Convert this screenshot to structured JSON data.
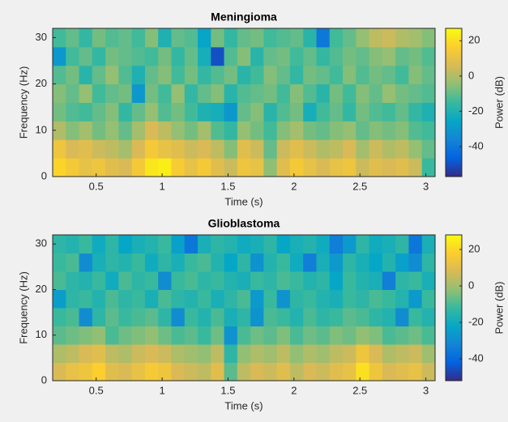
{
  "chart_data": [
    {
      "type": "heatmap",
      "title": "Meningioma",
      "xlabel": "Time (s)",
      "ylabel": "Frequency (Hz)",
      "colorbar_label": "Power (dB)",
      "colormap": "parula",
      "x": [
        0.22,
        0.32,
        0.42,
        0.52,
        0.62,
        0.72,
        0.82,
        0.92,
        1.02,
        1.12,
        1.22,
        1.32,
        1.42,
        1.52,
        1.62,
        1.72,
        1.82,
        1.92,
        2.02,
        2.12,
        2.22,
        2.32,
        2.42,
        2.52,
        2.62,
        2.72,
        2.82,
        2.92,
        3.02
      ],
      "y": [
        2,
        6,
        10,
        14,
        18,
        22,
        26,
        30
      ],
      "z": [
        [
          18,
          14,
          10,
          12,
          8,
          6,
          14,
          22,
          24,
          15,
          10,
          14,
          8,
          4,
          12,
          10,
          -5,
          8,
          14,
          10,
          6,
          10,
          12,
          4,
          8,
          6,
          8,
          4,
          -15
        ],
        [
          12,
          6,
          8,
          4,
          2,
          -2,
          6,
          14,
          10,
          8,
          4,
          6,
          2,
          -6,
          8,
          4,
          -10,
          4,
          8,
          4,
          0,
          2,
          6,
          -2,
          4,
          0,
          2,
          -4,
          -10
        ],
        [
          0,
          -6,
          -2,
          -8,
          -4,
          -10,
          -2,
          6,
          2,
          -4,
          -8,
          -2,
          -12,
          -16,
          -4,
          -8,
          -14,
          -6,
          -2,
          -8,
          -10,
          -6,
          -4,
          -10,
          -6,
          -8,
          -6,
          -12,
          -14
        ],
        [
          -8,
          -12,
          -14,
          -10,
          -6,
          -16,
          -10,
          -4,
          -12,
          -8,
          -14,
          -20,
          -22,
          -30,
          -10,
          -6,
          -18,
          -12,
          -8,
          -22,
          -14,
          -10,
          -16,
          -8,
          -12,
          -14,
          -10,
          -16,
          -20
        ],
        [
          -6,
          -10,
          -4,
          -14,
          -10,
          -8,
          -30,
          -8,
          -14,
          -4,
          -16,
          -10,
          -6,
          -18,
          -12,
          -10,
          -8,
          -14,
          -6,
          -12,
          -18,
          -8,
          -14,
          -6,
          -10,
          -4,
          -8,
          -10,
          -12
        ],
        [
          -12,
          -8,
          -18,
          -10,
          -4,
          -12,
          -20,
          -10,
          -6,
          -14,
          -8,
          -16,
          -12,
          -8,
          -18,
          -14,
          -6,
          -10,
          -16,
          -8,
          -10,
          -14,
          -6,
          -12,
          -8,
          -10,
          -14,
          -6,
          -10
        ],
        [
          -30,
          -14,
          -10,
          -16,
          -8,
          -10,
          -12,
          -14,
          -8,
          -16,
          -10,
          -22,
          -50,
          -12,
          -6,
          -18,
          -10,
          -8,
          -14,
          -10,
          -16,
          -12,
          -8,
          -10,
          -6,
          -4,
          -10,
          -8,
          -12
        ],
        [
          -14,
          -10,
          -16,
          -8,
          -12,
          -10,
          -14,
          -6,
          -20,
          -10,
          -12,
          -26,
          -8,
          -16,
          -10,
          -8,
          -14,
          -12,
          -10,
          -18,
          -40,
          -14,
          -10,
          -4,
          2,
          4,
          0,
          -2,
          -6
        ]
      ],
      "xlim": [
        0.17,
        3.07
      ],
      "ylim": [
        0,
        32
      ],
      "xticks": [
        0.5,
        1,
        1.5,
        2,
        2.5,
        3
      ],
      "yticks": [
        0,
        10,
        20,
        30
      ],
      "clim": [
        -57,
        27
      ],
      "cticks": [
        -40,
        -20,
        0,
        20
      ]
    },
    {
      "type": "heatmap",
      "title": "Glioblastoma",
      "xlabel": "Time (s)",
      "ylabel": "Frequency (Hz)",
      "colorbar_label": "Power (dB)",
      "colormap": "parula",
      "x": [
        0.22,
        0.32,
        0.42,
        0.52,
        0.62,
        0.72,
        0.82,
        0.92,
        1.02,
        1.12,
        1.22,
        1.32,
        1.42,
        1.52,
        1.62,
        1.72,
        1.82,
        1.92,
        2.02,
        2.12,
        2.22,
        2.32,
        2.42,
        2.52,
        2.62,
        2.72,
        2.82,
        2.92,
        3.02
      ],
      "y": [
        2,
        6,
        10,
        14,
        18,
        22,
        26,
        30
      ],
      "z": [
        [
          8,
          12,
          14,
          18,
          10,
          8,
          12,
          16,
          14,
          8,
          6,
          4,
          10,
          -8,
          4,
          8,
          6,
          10,
          4,
          8,
          6,
          10,
          12,
          22,
          14,
          8,
          10,
          12,
          6
        ],
        [
          2,
          4,
          8,
          10,
          4,
          2,
          6,
          8,
          6,
          2,
          0,
          -2,
          4,
          -14,
          -2,
          2,
          0,
          4,
          -2,
          2,
          0,
          4,
          6,
          14,
          8,
          2,
          4,
          6,
          0
        ],
        [
          -8,
          -6,
          -4,
          -2,
          -10,
          -6,
          -4,
          -2,
          -6,
          -10,
          -8,
          -12,
          -6,
          -28,
          -10,
          -6,
          -8,
          -4,
          -10,
          -6,
          -8,
          -4,
          -6,
          -2,
          -4,
          -10,
          -8,
          -6,
          -10
        ],
        [
          -12,
          -10,
          -30,
          -14,
          -8,
          -12,
          -10,
          -8,
          -14,
          -30,
          -12,
          -16,
          -10,
          -18,
          -14,
          -28,
          -10,
          -12,
          -16,
          -10,
          -14,
          -12,
          -8,
          -10,
          -14,
          -16,
          -30,
          -12,
          -16
        ],
        [
          -25,
          -14,
          -12,
          -16,
          -10,
          -14,
          -12,
          -18,
          -10,
          -14,
          -16,
          -12,
          -18,
          -14,
          -10,
          -26,
          -12,
          -28,
          -14,
          -12,
          -16,
          -18,
          -12,
          -14,
          -10,
          -12,
          -16,
          -26,
          -12
        ],
        [
          -10,
          -14,
          -16,
          -12,
          -20,
          -10,
          -14,
          -12,
          -30,
          -12,
          -10,
          -14,
          -12,
          -16,
          -18,
          -12,
          -14,
          -10,
          -12,
          -16,
          -14,
          -22,
          -12,
          -16,
          -18,
          -34,
          -14,
          -12,
          -18
        ],
        [
          -12,
          -10,
          -30,
          -18,
          -14,
          -16,
          -12,
          -20,
          -14,
          -18,
          -12,
          -10,
          -16,
          -22,
          -14,
          -28,
          -16,
          -12,
          -20,
          -34,
          -18,
          -26,
          -14,
          -18,
          -22,
          -16,
          -24,
          -30,
          -14
        ],
        [
          -14,
          -16,
          -12,
          -20,
          -14,
          -22,
          -18,
          -16,
          -12,
          -24,
          -36,
          -18,
          -14,
          -16,
          -20,
          -18,
          -14,
          -22,
          -18,
          -16,
          -20,
          -34,
          -26,
          -14,
          -20,
          -18,
          -14,
          -36,
          -18
        ]
      ],
      "xlim": [
        0.17,
        3.07
      ],
      "ylim": [
        0,
        32
      ],
      "xticks": [
        0.5,
        1,
        1.5,
        2,
        2.5,
        3
      ],
      "yticks": [
        0,
        10,
        20,
        30
      ],
      "clim": [
        -52,
        28
      ],
      "cticks": [
        -40,
        -20,
        0,
        20
      ]
    }
  ]
}
